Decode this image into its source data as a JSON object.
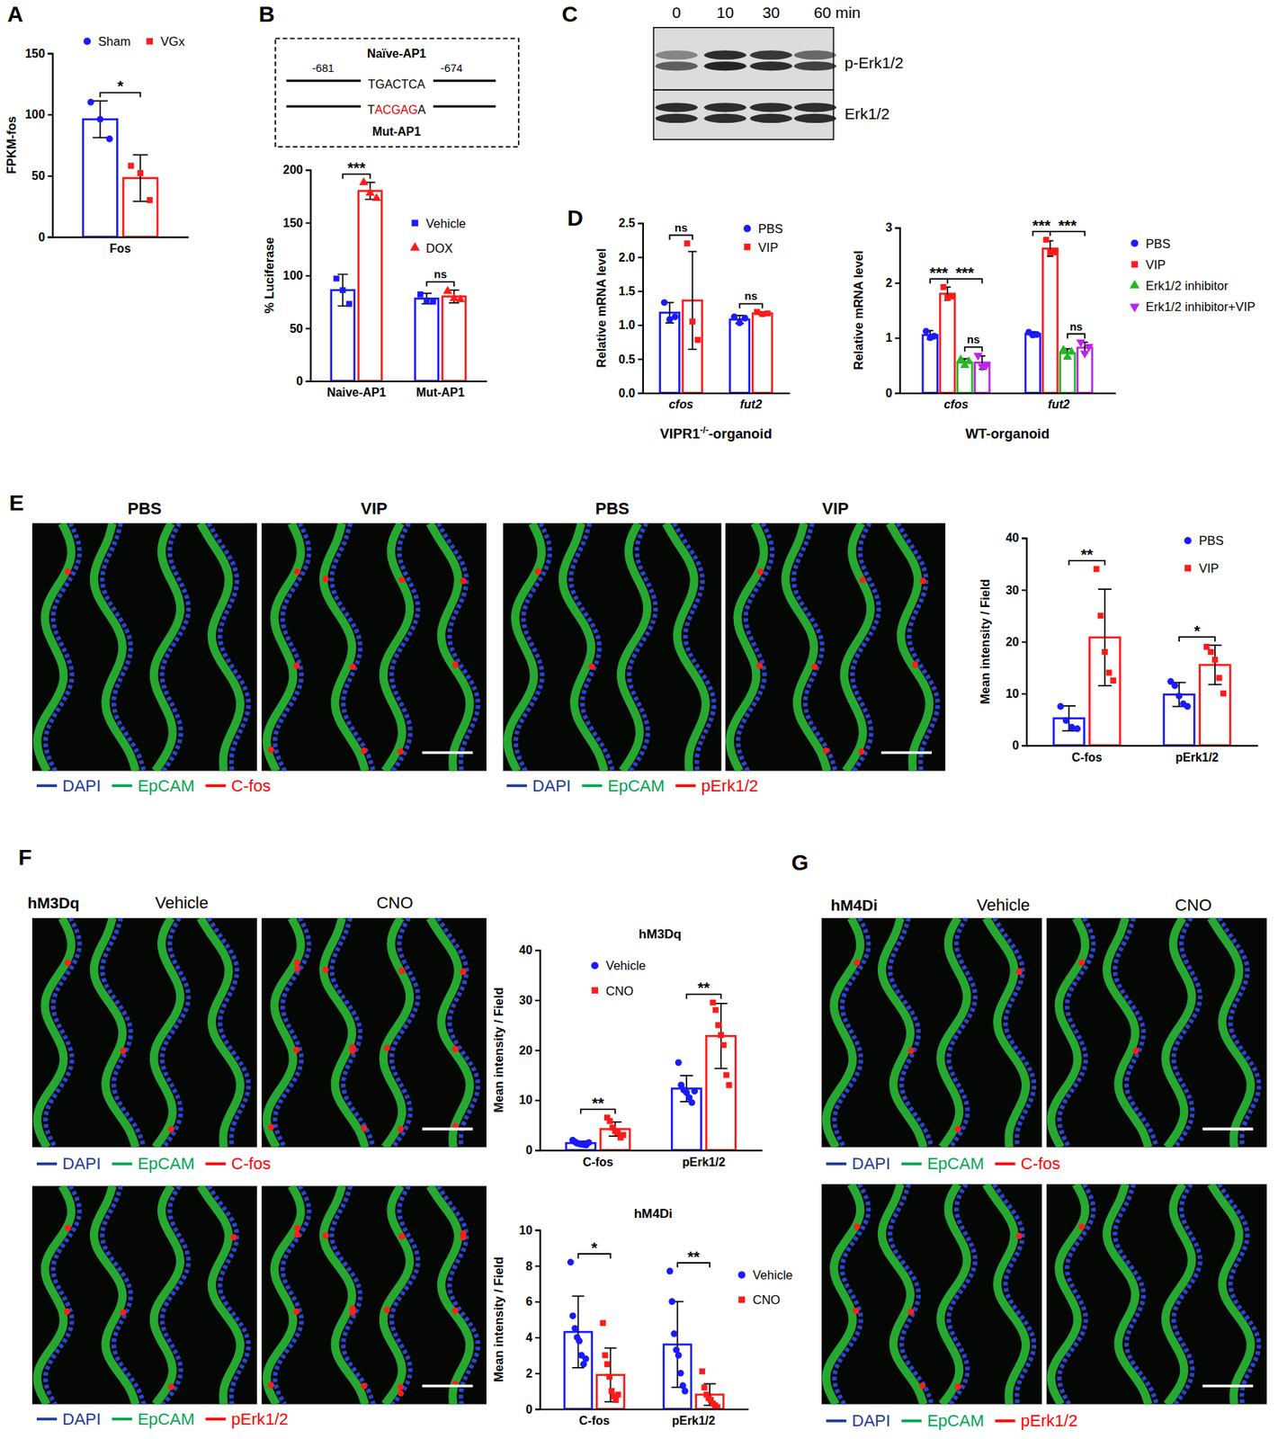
{
  "figure": {
    "panel_labels": [
      "A",
      "B",
      "C",
      "D",
      "E",
      "F",
      "G"
    ],
    "B_diagram": {
      "title": "Naïve-AP1",
      "start": "-681",
      "end": "-674",
      "wild_type": "TGACTCA",
      "mutant": [
        "T",
        "ACGAG",
        "A"
      ],
      "mutant_label": "Mut-AP1",
      "colors": [
        "#000000",
        "#e00000",
        "#000000"
      ]
    },
    "C_blot": {
      "times": [
        "0",
        "10",
        "30",
        "60 min"
      ],
      "rows": [
        "p-Erk1/2",
        "Erk1/2"
      ]
    },
    "E_images": {
      "titles": [
        "PBS",
        "VIP",
        "PBS",
        "VIP"
      ],
      "legends": [
        {
          "items": [
            "DAPI",
            "EpCAM",
            "C-fos"
          ],
          "colors": [
            "#1f3c98",
            "#00a651",
            "#ff0000"
          ]
        },
        {
          "items": [
            "DAPI",
            "EpCAM",
            "pErk1/2"
          ],
          "colors": [
            "#1f3c98",
            "#00a651",
            "#ff0000"
          ]
        }
      ]
    },
    "F_images": {
      "label": "hM3Dq",
      "titles": [
        "Vehicle",
        "CNO"
      ],
      "legends": [
        {
          "items": [
            "DAPI",
            "EpCAM",
            "C-fos"
          ],
          "colors": [
            "#1f3c98",
            "#00a651",
            "#ff0000"
          ]
        },
        {
          "items": [
            "DAPI",
            "EpCAM",
            "pErk1/2"
          ],
          "colors": [
            "#1f3c98",
            "#00a651",
            "#ff0000"
          ]
        }
      ]
    },
    "G_images": {
      "label": "hM4Di",
      "titles": [
        "Vehicle",
        "CNO"
      ],
      "legends": [
        {
          "items": [
            "DAPI",
            "EpCAM",
            "C-fos"
          ],
          "colors": [
            "#1f3c98",
            "#00a651",
            "#ff0000"
          ]
        },
        {
          "items": [
            "DAPI",
            "EpCAM",
            "pErk1/2"
          ],
          "colors": [
            "#1f3c98",
            "#00a651",
            "#ff0000"
          ]
        }
      ]
    }
  },
  "chart_data": [
    {
      "type": "bar",
      "ylabel": "FPKM-fos",
      "categories": [
        "Fos"
      ],
      "ylim": [
        0,
        150
      ],
      "yticks": [
        0,
        50,
        100,
        150
      ],
      "legend": "top",
      "series": [
        {
          "name": "Sham",
          "color": "#1a1aff",
          "marker": "circle",
          "values": [
            96
          ],
          "errors": [
            15
          ],
          "points": [
            [
              110,
              96,
              80
            ]
          ]
        },
        {
          "name": "VGx",
          "color": "#ff1a1a",
          "marker": "square",
          "values": [
            48
          ],
          "errors": [
            19
          ],
          "points": [
            [
              58,
              52,
              30
            ]
          ]
        }
      ],
      "significance": [
        {
          "category": "Fos",
          "between": [
            "Sham",
            "VGx"
          ],
          "text": "*"
        }
      ]
    },
    {
      "type": "bar",
      "ylabel": "% Luciferase",
      "categories": [
        "Naive-AP1",
        "Mut-AP1"
      ],
      "ylim": [
        0,
        200
      ],
      "yticks": [
        0,
        50,
        100,
        150,
        200
      ],
      "legend": "top-right",
      "series": [
        {
          "name": "Vehicle",
          "color": "#1a1aff",
          "marker": "square",
          "values": [
            86,
            78
          ],
          "errors": [
            15,
            5
          ],
          "points": [
            [
              97,
              86,
              73
            ],
            [
              82,
              76,
              75
            ]
          ]
        },
        {
          "name": "DOX",
          "color": "#ff1a1a",
          "marker": "triangle",
          "values": [
            180,
            80
          ],
          "errors": [
            8,
            6
          ],
          "points": [
            [
              188,
              178,
              173
            ],
            [
              85,
              78,
              77
            ]
          ]
        }
      ],
      "significance": [
        {
          "category": "Naive-AP1",
          "between": [
            "Vehicle",
            "DOX"
          ],
          "text": "***"
        },
        {
          "category": "Mut-AP1",
          "between": [
            "Vehicle",
            "DOX"
          ],
          "text": "ns"
        }
      ]
    },
    {
      "type": "bar",
      "ylabel": "Relative mRNA level",
      "xlabel": [
        "VIPR1",
        "-/-",
        "-organoid"
      ],
      "categories": [
        "cfos",
        "fut2"
      ],
      "ylim": [
        0,
        2.5
      ],
      "yticks": [
        {
          "value": 0,
          "label": "0.0"
        },
        {
          "value": 0.5,
          "label": "0.5"
        },
        {
          "value": 1,
          "label": "1.0"
        },
        {
          "value": 1.5,
          "label": "1.5"
        },
        {
          "value": 2,
          "label": "2.0"
        },
        {
          "value": 2.5,
          "label": "2.5"
        }
      ],
      "legend": "top-right",
      "series": [
        {
          "name": "PBS",
          "color": "#1a1aff",
          "marker": "circle",
          "values": [
            1.18,
            1.08
          ],
          "errors": [
            0.15,
            0.06
          ],
          "points": [
            [
              1.33,
              1.08,
              1.12
            ],
            [
              1.12,
              1.03,
              1.1
            ]
          ]
        },
        {
          "name": "VIP",
          "color": "#ff1a1a",
          "marker": "square",
          "values": [
            1.36,
            1.17
          ],
          "errors": [
            0.72,
            0.02
          ],
          "points": [
            [
              2.2,
              1.05,
              0.78
            ],
            [
              1.19,
              1.16,
              1.17
            ]
          ]
        }
      ],
      "significance": [
        {
          "category": "cfos",
          "between": [
            "PBS",
            "VIP"
          ],
          "text": "ns"
        },
        {
          "category": "fut2",
          "between": [
            "PBS",
            "VIP"
          ],
          "text": "ns"
        }
      ]
    },
    {
      "type": "bar",
      "ylabel": "Relative mRNA level",
      "xlabel": [
        "WT-organoid"
      ],
      "categories": [
        "cfos",
        "fut2"
      ],
      "ylim": [
        0,
        3
      ],
      "yticks": [
        0,
        1,
        2,
        3
      ],
      "legend": "right",
      "series": [
        {
          "name": "PBS",
          "color": "#1a1aff",
          "marker": "circle",
          "values": [
            1.05,
            1.07
          ],
          "errors": [
            0.08,
            0.04
          ],
          "points": [
            [
              1.12,
              1.0,
              1.03
            ],
            [
              1.1,
              1.05,
              1.06
            ]
          ]
        },
        {
          "name": "VIP",
          "color": "#ff1a1a",
          "marker": "square",
          "values": [
            1.8,
            2.62
          ],
          "errors": [
            0.12,
            0.14
          ],
          "points": [
            [
              1.92,
              1.73,
              1.75
            ],
            [
              2.78,
              2.55,
              2.55
            ]
          ]
        },
        {
          "name": "Erk1/2 inhibitor",
          "color": "#22b822",
          "marker": "triangle",
          "values": [
            0.55,
            0.72
          ],
          "errors": [
            0.07,
            0.08
          ],
          "points": [
            [
              0.6,
              0.5,
              0.57
            ],
            [
              0.78,
              0.65,
              0.74
            ]
          ]
        },
        {
          "name": "Erk1/2 inhibitor+VIP",
          "color": "#c020f0",
          "marker": "triangle-down",
          "values": [
            0.55,
            0.82
          ],
          "errors": [
            0.12,
            0.1
          ],
          "points": [
            [
              0.68,
              0.48,
              0.5
            ],
            [
              0.92,
              0.72,
              0.84
            ]
          ]
        }
      ],
      "significance": [
        {
          "category": "cfos",
          "between": [
            "PBS",
            "VIP"
          ],
          "text": "***"
        },
        {
          "category": "cfos",
          "between": [
            "VIP",
            "Erk1/2 inhibitor+VIP"
          ],
          "text": "***"
        },
        {
          "category": "cfos",
          "between": [
            "Erk1/2 inhibitor",
            "Erk1/2 inhibitor+VIP"
          ],
          "text": "ns"
        },
        {
          "category": "fut2",
          "between": [
            "PBS",
            "VIP"
          ],
          "text": "***"
        },
        {
          "category": "fut2",
          "between": [
            "VIP",
            "Erk1/2 inhibitor+VIP"
          ],
          "text": "***"
        },
        {
          "category": "fut2",
          "between": [
            "Erk1/2 inhibitor",
            "Erk1/2 inhibitor+VIP"
          ],
          "text": "ns"
        }
      ]
    },
    {
      "type": "bar",
      "ylabel": "Mean intensity / Field",
      "categories": [
        "C-fos",
        "pErk1/2"
      ],
      "ylim": [
        0,
        40
      ],
      "yticks": [
        0,
        10,
        20,
        30,
        40
      ],
      "legend": "top-right",
      "series": [
        {
          "name": "PBS",
          "color": "#1a1aff",
          "marker": "circle",
          "values": [
            5.2,
            9.8
          ],
          "errors": [
            2.4,
            2.3
          ],
          "points": [
            [
              7.5,
              4.8,
              3.5,
              3.2
            ],
            [
              12.3,
              11.5,
              9.5,
              8,
              7.5
            ]
          ]
        },
        {
          "name": "VIP",
          "color": "#ff1a1a",
          "marker": "square",
          "values": [
            20.8,
            15.5
          ],
          "errors": [
            9.3,
            3.8
          ],
          "points": [
            [
              34,
              25,
              18,
              14,
              12.5
            ],
            [
              19,
              18,
              16.5,
              13,
              10
            ]
          ]
        }
      ],
      "significance": [
        {
          "category": "C-fos",
          "between": [
            "PBS",
            "VIP"
          ],
          "text": "**"
        },
        {
          "category": "pErk1/2",
          "between": [
            "PBS",
            "VIP"
          ],
          "text": "*"
        }
      ]
    },
    {
      "type": "bar",
      "title": "hM3Dq",
      "ylabel": "Mean intensity / Field",
      "categories": [
        "C-fos",
        "pErk1/2"
      ],
      "ylim": [
        0,
        40
      ],
      "yticks": [
        0,
        10,
        20,
        30,
        40
      ],
      "legend": "top-left",
      "series": [
        {
          "name": "Vehicle",
          "color": "#1a1aff",
          "marker": "circle",
          "values": [
            1.4,
            12.3
          ],
          "errors": [
            0.4,
            2.6
          ],
          "points": [
            [
              2,
              1.6,
              1.3,
              1.2,
              1.1,
              1,
              1.5
            ],
            [
              17.5,
              13,
              12,
              11.5,
              10.5,
              9.5,
              11.8
            ]
          ]
        },
        {
          "name": "CNO",
          "color": "#ff1a1a",
          "marker": "square",
          "values": [
            4.2,
            22.8
          ],
          "errors": [
            1.4,
            6.5
          ],
          "points": [
            [
              6.5,
              5.8,
              4.5,
              3.8,
              3.5,
              2.5,
              3
            ],
            [
              29.5,
              28,
              25,
              23,
              21,
              15,
              13
            ]
          ]
        }
      ],
      "significance": [
        {
          "category": "C-fos",
          "between": [
            "Vehicle",
            "CNO"
          ],
          "text": "**"
        },
        {
          "category": "pErk1/2",
          "between": [
            "Vehicle",
            "CNO"
          ],
          "text": "**"
        }
      ]
    },
    {
      "type": "bar",
      "title": "hM4Di",
      "ylabel": "Mean intensity / Field",
      "categories": [
        "C-fos",
        "pErk1/2"
      ],
      "ylim": [
        0,
        10
      ],
      "yticks": [
        0,
        2,
        4,
        6,
        8,
        10
      ],
      "legend": "top-right",
      "series": [
        {
          "name": "Vehicle",
          "color": "#1a1aff",
          "marker": "circle",
          "values": [
            4.3,
            3.6
          ],
          "errors": [
            2,
            2.4
          ],
          "points": [
            [
              8.2,
              5.2,
              4.5,
              4,
              3.8,
              3,
              2.5,
              2.8
            ],
            [
              7.7,
              6,
              4.2,
              3.3,
              3,
              2,
              1.3,
              1
            ]
          ]
        },
        {
          "name": "CNO",
          "color": "#ff1a1a",
          "marker": "square",
          "values": [
            1.9,
            0.8
          ],
          "errors": [
            1.5,
            0.6
          ],
          "points": [
            [
              4.8,
              3,
              2.5,
              1.8,
              1,
              0.7,
              0.5,
              0.8
            ],
            [
              2.1,
              1.2,
              0.8,
              0.6,
              0.5,
              0.3,
              0.2,
              0.1
            ]
          ]
        }
      ],
      "significance": [
        {
          "category": "C-fos",
          "between": [
            "Vehicle",
            "CNO"
          ],
          "text": "*"
        },
        {
          "category": "pErk1/2",
          "between": [
            "Vehicle",
            "CNO"
          ],
          "text": "**"
        }
      ]
    }
  ]
}
